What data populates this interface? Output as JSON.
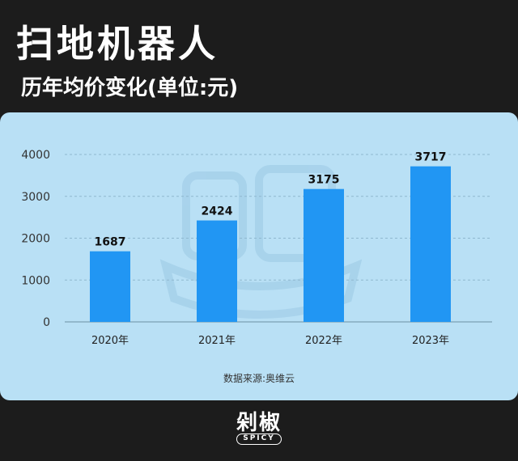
{
  "header": {
    "title": "扫地机器人",
    "subtitle": "历年均价变化(单位:元)"
  },
  "source_note": "数据来源:奥维云",
  "brand": {
    "name_cn": "剁椒",
    "name_en": "SPICY"
  },
  "colors": {
    "background": "#1c1c1c",
    "card": "#b9e0f5",
    "bar": "#2196f3",
    "grid": "#8fb8cf"
  },
  "chart_data": {
    "type": "bar",
    "categories": [
      "2020年",
      "2021年",
      "2022年",
      "2023年"
    ],
    "values": [
      1687,
      2424,
      3175,
      3717
    ],
    "data_labels": [
      "1687",
      "2424",
      "3175",
      "3717"
    ],
    "yticks": [
      0,
      1000,
      2000,
      3000,
      4000
    ],
    "ylim": [
      0,
      4000
    ],
    "grid": true,
    "title": "扫地机器人",
    "subtitle": "历年均价变化(单位:元)",
    "xlabel": "",
    "ylabel": ""
  }
}
